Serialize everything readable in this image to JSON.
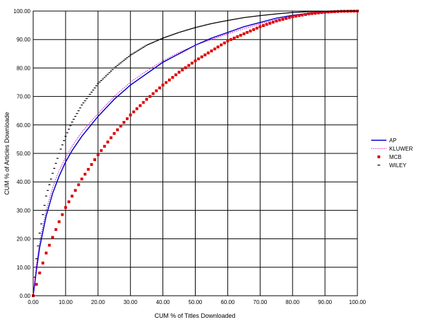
{
  "chart_data": {
    "type": "line",
    "title": "",
    "xlabel": "CUM % of Titles Downloaded",
    "ylabel": "CUM % of Articles Downloade",
    "xlim": [
      0,
      100
    ],
    "ylim": [
      0,
      100
    ],
    "x_ticks": [
      "0.00",
      "10.00",
      "20.00",
      "30.00",
      "40.00",
      "50.00",
      "60.00",
      "70.00",
      "80.00",
      "90.00",
      "100.00"
    ],
    "y_ticks": [
      "0.00",
      "10.00",
      "20.00",
      "30.00",
      "40.00",
      "50.00",
      "60.00",
      "70.00",
      "80.00",
      "90.00",
      "100.00"
    ],
    "grid": true,
    "legend_position": "right",
    "series": [
      {
        "name": "AP",
        "style": "solid-line",
        "color": "#0000cc",
        "x": [
          0,
          1,
          2,
          4,
          6,
          8,
          10,
          12,
          15,
          20,
          25,
          30,
          35,
          40,
          45,
          50,
          55,
          60,
          65,
          70,
          75,
          80,
          85,
          90,
          95,
          100
        ],
        "y": [
          0,
          9,
          17,
          28,
          36,
          42,
          47,
          51,
          56,
          63,
          69,
          74,
          78,
          82,
          85,
          88,
          90.5,
          92.5,
          94.5,
          96,
          97.5,
          98.5,
          99.2,
          99.6,
          99.9,
          100
        ]
      },
      {
        "name": "KLUWER",
        "style": "dotted-line",
        "color": "#cc00cc",
        "x": [
          0,
          1,
          2,
          4,
          6,
          8,
          10,
          12,
          15,
          20,
          25,
          30,
          35,
          40,
          45,
          50,
          55,
          60,
          65,
          70,
          75,
          80,
          85,
          90,
          95,
          100
        ],
        "y": [
          0,
          11,
          19,
          30,
          38,
          44,
          48.5,
          52.5,
          57.5,
          64,
          70,
          75,
          79,
          82.5,
          85.5,
          88,
          90,
          92,
          93.8,
          95.5,
          97,
          98.2,
          99,
          99.6,
          99.9,
          100
        ]
      },
      {
        "name": "MCB",
        "style": "square-markers",
        "color": "#dd0000",
        "x": [
          0,
          1,
          2,
          4,
          6,
          8,
          10,
          12,
          15,
          20,
          25,
          30,
          35,
          40,
          45,
          50,
          55,
          60,
          65,
          70,
          75,
          80,
          85,
          90,
          95,
          100
        ],
        "y": [
          0,
          4,
          8,
          15,
          20.5,
          26,
          31,
          35,
          41,
          49.5,
          57,
          63.5,
          69,
          74,
          78.5,
          82.5,
          86,
          89.5,
          92,
          94.5,
          96.5,
          98,
          99,
          99.6,
          99.9,
          100
        ]
      },
      {
        "name": "WILEY",
        "style": "dash-markers",
        "color": "#000000",
        "x": [
          0,
          1,
          2,
          4,
          6,
          8,
          10,
          12,
          15,
          20,
          25,
          30,
          35,
          40,
          45,
          50,
          55,
          60,
          65,
          70,
          75,
          80,
          85,
          90,
          95,
          100
        ],
        "y": [
          0,
          13,
          22,
          35,
          43,
          50,
          56,
          61,
          67,
          74.5,
          80,
          84.5,
          88,
          90.5,
          92.5,
          94.2,
          95.6,
          96.7,
          97.7,
          98.4,
          99,
          99.5,
          99.8,
          99.95,
          100,
          100
        ]
      }
    ]
  }
}
